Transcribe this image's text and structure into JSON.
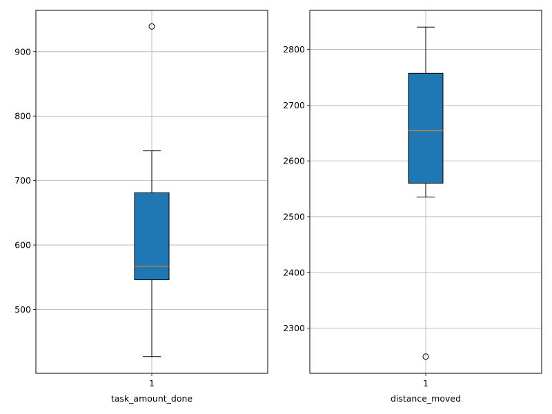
{
  "chart_data": [
    {
      "type": "box",
      "categories": [
        "1"
      ],
      "xlabel": "task_amount_done",
      "ylabel": "",
      "title": "",
      "ylim": [
        401,
        964
      ],
      "yticks": [
        500,
        600,
        700,
        800,
        900
      ],
      "grid": true,
      "box": {
        "whisker_low": 427,
        "q1": 546,
        "median": 567,
        "q3": 681,
        "whisker_high": 746,
        "outliers": [
          939
        ]
      },
      "colors": {
        "box_fill": "#1f77b4",
        "median": "#ff7f0e",
        "grid": "#b0b0b0"
      }
    },
    {
      "type": "box",
      "categories": [
        "1"
      ],
      "xlabel": "distance_moved",
      "ylabel": "",
      "title": "",
      "ylim": [
        2219,
        2870
      ],
      "yticks": [
        2300,
        2400,
        2500,
        2600,
        2700,
        2800
      ],
      "grid": true,
      "box": {
        "whisker_low": 2535,
        "q1": 2560,
        "median": 2654,
        "q3": 2757,
        "whisker_high": 2840,
        "outliers": [
          2249
        ]
      },
      "colors": {
        "box_fill": "#1f77b4",
        "median": "#ff7f0e",
        "grid": "#b0b0b0"
      }
    }
  ]
}
